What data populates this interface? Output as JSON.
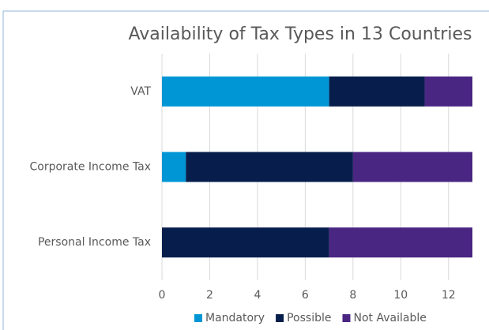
{
  "chart_data": {
    "type": "bar",
    "orientation": "horizontal",
    "stacked": true,
    "title": "Availability of Tax Types in 13 Countries",
    "categories": [
      "VAT",
      "Corporate Income Tax",
      "Personal Income Tax"
    ],
    "series": [
      {
        "name": "Mandatory",
        "color": "#0096d6",
        "values": [
          7,
          1,
          0
        ]
      },
      {
        "name": "Possible",
        "color": "#071e4c",
        "values": [
          4,
          7,
          7
        ]
      },
      {
        "name": "Not Available",
        "color": "#4a2683",
        "values": [
          2,
          5,
          6
        ]
      }
    ],
    "xlim": [
      0,
      13
    ],
    "xticks": [
      0,
      2,
      4,
      6,
      8,
      10,
      12
    ],
    "grid": true,
    "legend": "bottom"
  }
}
